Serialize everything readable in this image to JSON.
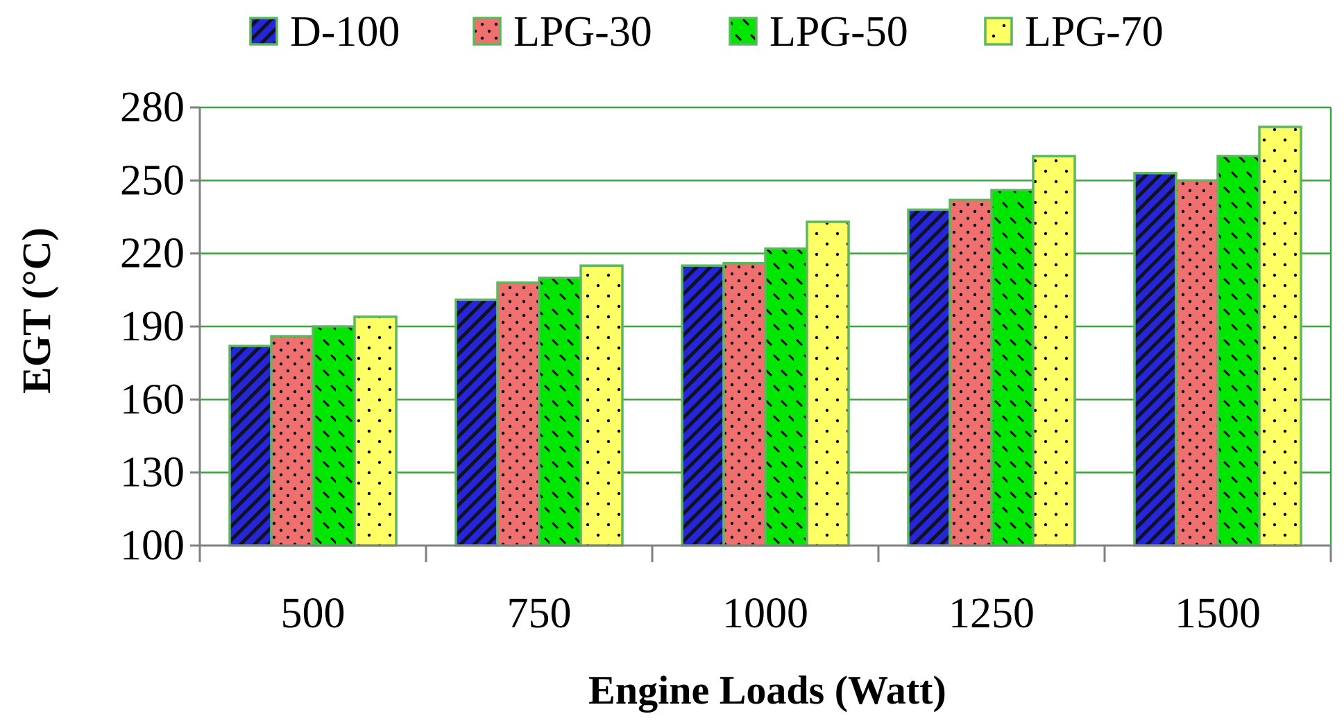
{
  "chart_data": {
    "type": "bar",
    "title": "",
    "xlabel": "Engine Loads (Watt)",
    "ylabel": "EGT (°C)",
    "categories": [
      "500",
      "750",
      "1000",
      "1250",
      "1500"
    ],
    "ylim": [
      100,
      280
    ],
    "yticks": [
      100,
      130,
      160,
      190,
      220,
      250,
      280
    ],
    "grid": true,
    "legend_position": "top",
    "series": [
      {
        "name": "D-100",
        "color": "#2626d9",
        "pattern": "wide-diagonal",
        "values": [
          182,
          201,
          215,
          238,
          253
        ]
      },
      {
        "name": "LPG-30",
        "color": "#f07070",
        "pattern": "dots",
        "values": [
          186,
          208,
          216,
          242,
          250
        ]
      },
      {
        "name": "LPG-50",
        "color": "#00e600",
        "pattern": "dashed-diagonal",
        "values": [
          190,
          210,
          222,
          246,
          260
        ]
      },
      {
        "name": "LPG-70",
        "color": "#ffff66",
        "pattern": "sparse-dots",
        "values": [
          194,
          215,
          233,
          260,
          272
        ]
      }
    ]
  }
}
